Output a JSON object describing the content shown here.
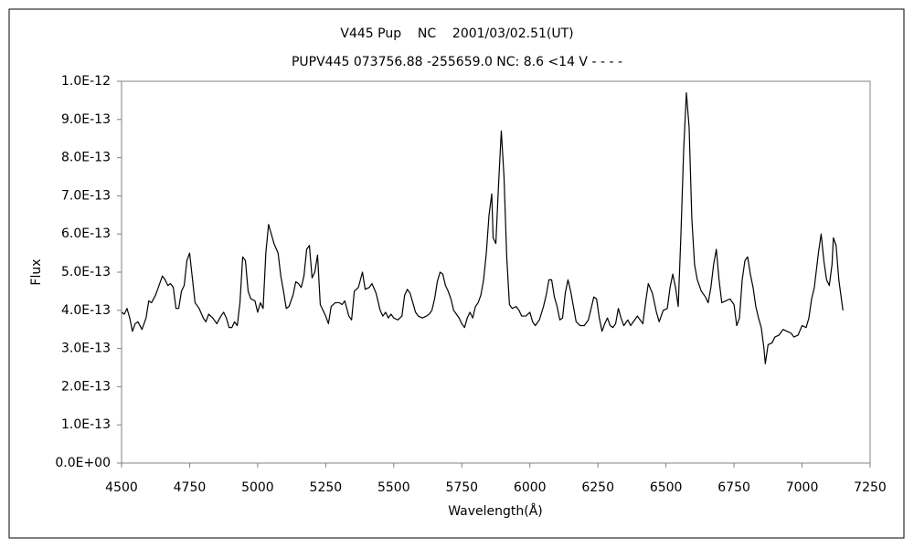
{
  "chart_data": {
    "type": "line",
    "title": "V445 Pup    NC    2001/03/02.51(UT)",
    "subtitle": "PUPV445 073756.88 -255659.0 NC: 8.6 <14 V - - - -",
    "x_label": "Wavelength(Å)",
    "y_label": "Flux",
    "xlim": [
      4500,
      7250
    ],
    "xticks": [
      4500,
      4750,
      5000,
      5250,
      5500,
      5750,
      6000,
      6250,
      6500,
      6750,
      7000,
      7250
    ],
    "ylim": [
      0,
      1e-12
    ],
    "yticks": [
      {
        "value": 0,
        "label": "0.0E+00"
      },
      {
        "value": 1e-13,
        "label": "1.0E-13"
      },
      {
        "value": 2e-13,
        "label": "2.0E-13"
      },
      {
        "value": 3e-13,
        "label": "3.0E-13"
      },
      {
        "value": 4e-13,
        "label": "4.0E-13"
      },
      {
        "value": 5e-13,
        "label": "5.0E-13"
      },
      {
        "value": 6e-13,
        "label": "6.0E-13"
      },
      {
        "value": 7e-13,
        "label": "7.0E-13"
      },
      {
        "value": 8e-13,
        "label": "8.0E-13"
      },
      {
        "value": 9e-13,
        "label": "9.0E-13"
      },
      {
        "value": 1e-12,
        "label": "1.0E-12"
      }
    ],
    "grid": false,
    "color": "#000000",
    "x": [
      4500,
      4510,
      4520,
      4530,
      4540,
      4550,
      4560,
      4575,
      4590,
      4600,
      4610,
      4625,
      4640,
      4650,
      4660,
      4670,
      4680,
      4690,
      4700,
      4710,
      4720,
      4730,
      4740,
      4750,
      4760,
      4770,
      4785,
      4800,
      4810,
      4820,
      4835,
      4850,
      4865,
      4875,
      4885,
      4895,
      4905,
      4915,
      4925,
      4935,
      4945,
      4955,
      4965,
      4975,
      4990,
      5000,
      5010,
      5020,
      5030,
      5040,
      5050,
      5060,
      5075,
      5085,
      5095,
      5105,
      5115,
      5130,
      5140,
      5150,
      5160,
      5170,
      5180,
      5190,
      5200,
      5210,
      5220,
      5230,
      5240,
      5250,
      5260,
      5270,
      5285,
      5300,
      5310,
      5320,
      5335,
      5345,
      5355,
      5370,
      5385,
      5395,
      5410,
      5420,
      5435,
      5450,
      5460,
      5470,
      5480,
      5490,
      5500,
      5515,
      5530,
      5540,
      5550,
      5560,
      5570,
      5580,
      5590,
      5605,
      5620,
      5630,
      5640,
      5650,
      5660,
      5670,
      5680,
      5690,
      5700,
      5710,
      5720,
      5730,
      5740,
      5750,
      5760,
      5770,
      5780,
      5790,
      5800,
      5810,
      5820,
      5830,
      5840,
      5850,
      5860,
      5865,
      5875,
      5885,
      5895,
      5905,
      5915,
      5925,
      5935,
      5950,
      5960,
      5970,
      5985,
      6000,
      6010,
      6020,
      6035,
      6050,
      6060,
      6070,
      6080,
      6090,
      6100,
      6110,
      6120,
      6130,
      6140,
      6150,
      6160,
      6170,
      6185,
      6200,
      6215,
      6225,
      6235,
      6245,
      6255,
      6265,
      6275,
      6285,
      6295,
      6305,
      6315,
      6325,
      6335,
      6345,
      6360,
      6370,
      6385,
      6395,
      6405,
      6415,
      6425,
      6435,
      6450,
      6465,
      6475,
      6490,
      6505,
      6515,
      6525,
      6535,
      6545,
      6555,
      6565,
      6575,
      6585,
      6595,
      6605,
      6615,
      6630,
      6645,
      6655,
      6665,
      6675,
      6685,
      6695,
      6705,
      6720,
      6735,
      6750,
      6760,
      6770,
      6780,
      6790,
      6800,
      6810,
      6820,
      6830,
      6840,
      6850,
      6860,
      6865,
      6875,
      6890,
      6900,
      6915,
      6930,
      6945,
      6960,
      6970,
      6985,
      7000,
      7015,
      7025,
      7035,
      7045,
      7060,
      7070,
      7080,
      7090,
      7100,
      7110,
      7115,
      7125,
      7135,
      7150
    ],
    "values": [
      3.95e-13,
      3.9e-13,
      4.05e-13,
      3.8e-13,
      3.45e-13,
      3.65e-13,
      3.7e-13,
      3.5e-13,
      3.8e-13,
      4.25e-13,
      4.2e-13,
      4.4e-13,
      4.7e-13,
      4.9e-13,
      4.8e-13,
      4.65e-13,
      4.7e-13,
      4.6e-13,
      4.05e-13,
      4.05e-13,
      4.5e-13,
      4.65e-13,
      5.3e-13,
      5.5e-13,
      4.85e-13,
      4.2e-13,
      4.05e-13,
      3.8e-13,
      3.7e-13,
      3.9e-13,
      3.8e-13,
      3.65e-13,
      3.85e-13,
      3.95e-13,
      3.8e-13,
      3.55e-13,
      3.55e-13,
      3.7e-13,
      3.6e-13,
      4.2e-13,
      5.4e-13,
      5.3e-13,
      4.5e-13,
      4.3e-13,
      4.25e-13,
      3.95e-13,
      4.2e-13,
      4.05e-13,
      5.5e-13,
      6.25e-13,
      6e-13,
      5.75e-13,
      5.5e-13,
      4.9e-13,
      4.5e-13,
      4.05e-13,
      4.1e-13,
      4.4e-13,
      4.75e-13,
      4.7e-13,
      4.6e-13,
      4.9e-13,
      5.6e-13,
      5.7e-13,
      4.85e-13,
      5e-13,
      5.45e-13,
      4.15e-13,
      4e-13,
      3.85e-13,
      3.65e-13,
      4.1e-13,
      4.2e-13,
      4.2e-13,
      4.15e-13,
      4.25e-13,
      3.85e-13,
      3.75e-13,
      4.5e-13,
      4.6e-13,
      5e-13,
      4.55e-13,
      4.6e-13,
      4.7e-13,
      4.45e-13,
      4e-13,
      3.85e-13,
      3.95e-13,
      3.8e-13,
      3.9e-13,
      3.8e-13,
      3.75e-13,
      3.85e-13,
      4.4e-13,
      4.55e-13,
      4.45e-13,
      4.2e-13,
      3.95e-13,
      3.85e-13,
      3.8e-13,
      3.85e-13,
      3.9e-13,
      4e-13,
      4.3e-13,
      4.75e-13,
      5e-13,
      4.95e-13,
      4.65e-13,
      4.5e-13,
      4.3e-13,
      4e-13,
      3.9e-13,
      3.8e-13,
      3.65e-13,
      3.55e-13,
      3.8e-13,
      3.95e-13,
      3.8e-13,
      4.1e-13,
      4.2e-13,
      4.4e-13,
      4.8e-13,
      5.5e-13,
      6.5e-13,
      7.05e-13,
      5.9e-13,
      5.75e-13,
      7.3e-13,
      8.7e-13,
      7.5e-13,
      5.4e-13,
      4.15e-13,
      4.05e-13,
      4.1e-13,
      4e-13,
      3.85e-13,
      3.85e-13,
      3.95e-13,
      3.7e-13,
      3.6e-13,
      3.75e-13,
      4.1e-13,
      4.4e-13,
      4.8e-13,
      4.8e-13,
      4.35e-13,
      4.1e-13,
      3.75e-13,
      3.8e-13,
      4.45e-13,
      4.8e-13,
      4.5e-13,
      4.1e-13,
      3.7e-13,
      3.6e-13,
      3.6e-13,
      3.75e-13,
      4.05e-13,
      4.35e-13,
      4.3e-13,
      3.8e-13,
      3.45e-13,
      3.65e-13,
      3.8e-13,
      3.6e-13,
      3.55e-13,
      3.65e-13,
      4.05e-13,
      3.8e-13,
      3.6e-13,
      3.75e-13,
      3.6e-13,
      3.75e-13,
      3.85e-13,
      3.75e-13,
      3.65e-13,
      4.2e-13,
      4.7e-13,
      4.45e-13,
      3.95e-13,
      3.7e-13,
      4e-13,
      4.05e-13,
      4.6e-13,
      4.95e-13,
      4.6e-13,
      4.1e-13,
      6e-13,
      8.2e-13,
      9.7e-13,
      8.8e-13,
      6.4e-13,
      5.2e-13,
      4.8e-13,
      4.5e-13,
      4.35e-13,
      4.2e-13,
      4.6e-13,
      5.2e-13,
      5.6e-13,
      4.8e-13,
      4.2e-13,
      4.25e-13,
      4.3e-13,
      4.15e-13,
      3.6e-13,
      3.8e-13,
      4.8e-13,
      5.3e-13,
      5.4e-13,
      4.95e-13,
      4.6e-13,
      4.1e-13,
      3.8e-13,
      3.55e-13,
      3e-13,
      2.6e-13,
      3.1e-13,
      3.15e-13,
      3.3e-13,
      3.35e-13,
      3.5e-13,
      3.45e-13,
      3.4e-13,
      3.3e-13,
      3.35e-13,
      3.6e-13,
      3.55e-13,
      3.8e-13,
      4.3e-13,
      4.6e-13,
      5.5e-13,
      6e-13,
      5.3e-13,
      4.8e-13,
      4.65e-13,
      5.2e-13,
      5.9e-13,
      5.7e-13,
      4.8e-13,
      4e-13
    ]
  }
}
